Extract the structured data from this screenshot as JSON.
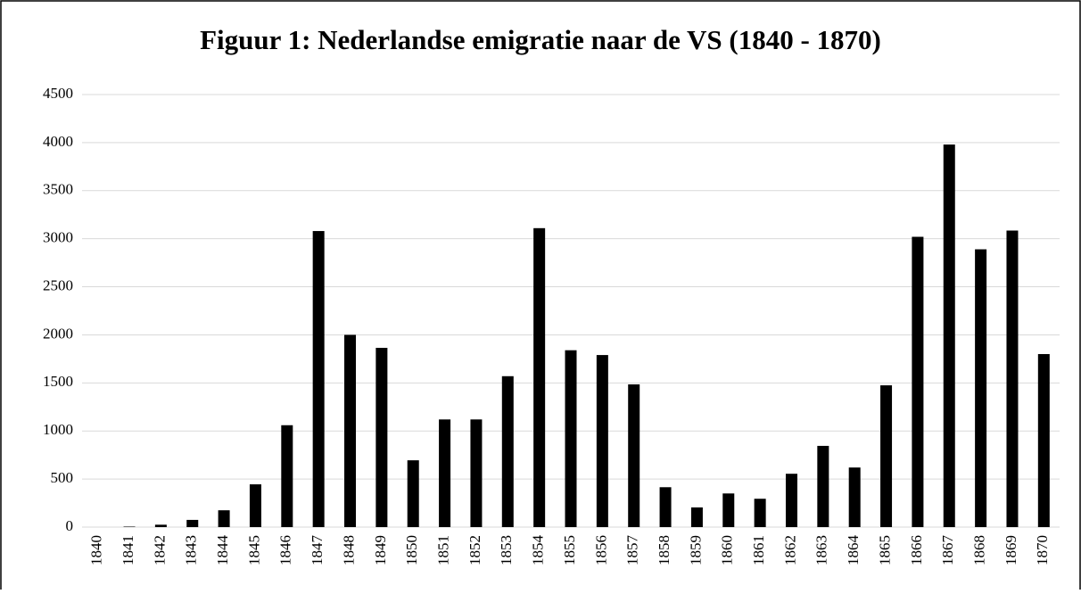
{
  "chart_data": {
    "type": "bar",
    "title": "Figuur 1: Nederlandse emigratie naar de VS (1840 - 1870)",
    "categories": [
      "1840",
      "1841",
      "1842",
      "1843",
      "1844",
      "1845",
      "1846",
      "1847",
      "1848",
      "1849",
      "1850",
      "1851",
      "1852",
      "1853",
      "1854",
      "1855",
      "1856",
      "1857",
      "1858",
      "1859",
      "1860",
      "1861",
      "1862",
      "1863",
      "1864",
      "1865",
      "1866",
      "1867",
      "1868",
      "1869",
      "1870"
    ],
    "values": [
      0,
      5,
      25,
      75,
      175,
      445,
      1060,
      3080,
      2000,
      1865,
      695,
      1120,
      1120,
      1570,
      3110,
      1840,
      1790,
      1485,
      415,
      205,
      350,
      295,
      555,
      845,
      620,
      1475,
      3020,
      3980,
      2890,
      3085,
      1800
    ],
    "color": "#000000",
    "ylim": [
      0,
      4500
    ],
    "yticks": [
      0,
      500,
      1000,
      1500,
      2000,
      2500,
      3000,
      3500,
      4000,
      4500
    ],
    "grid": true
  }
}
